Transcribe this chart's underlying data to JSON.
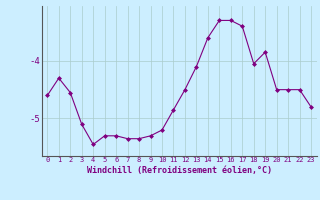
{
  "x": [
    0,
    1,
    2,
    3,
    4,
    5,
    6,
    7,
    8,
    9,
    10,
    11,
    12,
    13,
    14,
    15,
    16,
    17,
    18,
    19,
    20,
    21,
    22,
    23
  ],
  "y": [
    -4.6,
    -4.3,
    -4.55,
    -5.1,
    -5.45,
    -5.3,
    -5.3,
    -5.35,
    -5.35,
    -5.3,
    -5.2,
    -4.85,
    -4.5,
    -4.1,
    -3.6,
    -3.3,
    -3.3,
    -3.4,
    -4.05,
    -3.85,
    -4.5,
    -4.5,
    -4.5,
    -4.8
  ],
  "line_color": "#800080",
  "marker_color": "#800080",
  "bg_color": "#cceeff",
  "grid_color": "#aacccc",
  "axis_color": "#555555",
  "xlabel": "Windchill (Refroidissement éolien,°C)",
  "xticks": [
    0,
    1,
    2,
    3,
    4,
    5,
    6,
    7,
    8,
    9,
    10,
    11,
    12,
    13,
    14,
    15,
    16,
    17,
    18,
    19,
    20,
    21,
    22,
    23
  ],
  "yticks": [
    -4,
    -5
  ],
  "ylim": [
    -5.65,
    -3.05
  ],
  "xlim": [
    -0.5,
    23.5
  ]
}
